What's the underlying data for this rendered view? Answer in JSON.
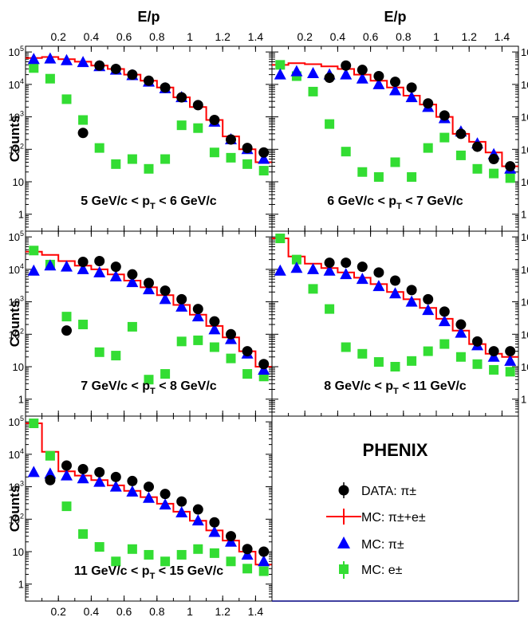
{
  "chart_data": {
    "type": "scatter",
    "x_axis_label": "E/p",
    "y_axis_label": "Counts",
    "xlim": [
      0,
      1.5
    ],
    "ylim": [
      0.3,
      150000
    ],
    "yscale": "log",
    "x_tick_labels": [
      "0.2",
      "0.4",
      "0.6",
      "0.8",
      "1",
      "1.2",
      "1.4"
    ],
    "x_ticks": [
      0.2,
      0.4,
      0.6,
      0.8,
      1.0,
      1.2,
      1.4
    ],
    "y_ticks": [
      1,
      10,
      100,
      1000,
      10000,
      100000
    ],
    "y_tick_labels": [
      {
        "base": "1",
        "exp": ""
      },
      {
        "base": "10",
        "exp": ""
      },
      {
        "base": "10",
        "exp": "2"
      },
      {
        "base": "10",
        "exp": "3"
      },
      {
        "base": "10",
        "exp": "4"
      },
      {
        "base": "10",
        "exp": "5"
      }
    ],
    "colors": {
      "data": "#000000",
      "mc_sum": "#ff0000",
      "mc_pi": "#0000ff",
      "mc_e": "#33dd33"
    },
    "legend": {
      "title": "PHENIX",
      "entries": [
        {
          "key": "data",
          "label": "DATA: π±",
          "marker": "circle"
        },
        {
          "key": "mc_sum",
          "label": "MC: π±+e±",
          "marker": "line"
        },
        {
          "key": "mc_pi",
          "label": "MC: π±",
          "marker": "triangle"
        },
        {
          "key": "mc_e",
          "label": "MC: e±",
          "marker": "square"
        }
      ]
    },
    "panels": [
      {
        "label": "5 GeV/c < pT < 6 GeV/c",
        "label_parts": [
          "5 GeV/c < p",
          "T",
          " < 6 GeV/c"
        ],
        "x": [
          0.05,
          0.15,
          0.25,
          0.35,
          0.45,
          0.55,
          0.65,
          0.75,
          0.85,
          0.95,
          1.05,
          1.15,
          1.25,
          1.35,
          1.45
        ],
        "mc_sum": [
          65000,
          70000,
          60000,
          50000,
          38000,
          30000,
          20000,
          13000,
          8000,
          4000,
          2000,
          800,
          250,
          100,
          40
        ],
        "mc_pi": [
          60000,
          62000,
          55000,
          48000,
          36000,
          28000,
          19000,
          12000,
          7500,
          4000,
          null,
          700,
          200,
          100,
          50
        ],
        "data": [
          null,
          null,
          null,
          320,
          38000,
          30000,
          20000,
          13000,
          8000,
          4000,
          2300,
          800,
          200,
          110,
          80
        ],
        "mc_e": [
          32000,
          15000,
          3500,
          800,
          110,
          35,
          50,
          25,
          50,
          550,
          450,
          80,
          55,
          35,
          22
        ]
      },
      {
        "label": "6 GeV/c < pT < 7 GeV/c",
        "label_parts": [
          "6 GeV/c < p",
          "T",
          " < 7 GeV/c"
        ],
        "x": [
          0.05,
          0.15,
          0.25,
          0.35,
          0.45,
          0.55,
          0.65,
          0.75,
          0.85,
          0.95,
          1.05,
          1.15,
          1.25,
          1.35,
          1.45
        ],
        "mc_sum": [
          40000,
          45000,
          42000,
          36000,
          30000,
          20000,
          13000,
          8000,
          4500,
          2400,
          1000,
          300,
          170,
          80,
          30
        ],
        "mc_pi": [
          20000,
          25000,
          22000,
          20000,
          20000,
          15000,
          10000,
          6500,
          4000,
          2000,
          900,
          350,
          150,
          70,
          25
        ],
        "data": [
          null,
          null,
          null,
          16000,
          38000,
          28000,
          18000,
          12000,
          8000,
          2600,
          1100,
          300,
          120,
          50,
          30
        ],
        "mc_e": [
          40000,
          18000,
          6000,
          600,
          85,
          20,
          14,
          40,
          14,
          110,
          230,
          65,
          25,
          18,
          13
        ]
      },
      {
        "label": "7 GeV/c < pT < 8 GeV/c",
        "label_parts": [
          "7 GeV/c < p",
          "T",
          " < 8 GeV/c"
        ],
        "x": [
          0.05,
          0.15,
          0.25,
          0.35,
          0.45,
          0.55,
          0.65,
          0.75,
          0.85,
          0.95,
          1.05,
          1.15,
          1.25,
          1.35,
          1.45
        ],
        "mc_sum": [
          35000,
          28000,
          18000,
          13000,
          10000,
          7000,
          4500,
          2800,
          1600,
          800,
          400,
          180,
          80,
          30,
          10
        ],
        "mc_pi": [
          9000,
          13000,
          12000,
          10000,
          8000,
          6000,
          4000,
          2400,
          1200,
          700,
          350,
          140,
          70,
          25,
          8
        ],
        "data": [
          null,
          null,
          130,
          17000,
          18000,
          12000,
          7000,
          3800,
          2200,
          1200,
          600,
          250,
          100,
          30,
          12
        ],
        "mc_e": [
          38000,
          14000,
          350,
          200,
          28,
          22,
          170,
          4,
          6,
          60,
          65,
          40,
          18,
          6,
          5
        ]
      },
      {
        "label": "8 GeV/c < pT < 11 GeV/c",
        "label_parts": [
          "8 GeV/c < p",
          "T",
          " < 11 GeV/c"
        ],
        "x": [
          0.05,
          0.15,
          0.25,
          0.35,
          0.45,
          0.55,
          0.65,
          0.75,
          0.85,
          0.95,
          1.05,
          1.15,
          1.25,
          1.35,
          1.45
        ],
        "mc_sum": [
          90000,
          25000,
          15000,
          11000,
          8000,
          5500,
          3500,
          2000,
          1200,
          650,
          300,
          130,
          50,
          25,
          20
        ],
        "mc_pi": [
          9000,
          11000,
          10000,
          9000,
          7000,
          5000,
          3000,
          1800,
          1000,
          550,
          250,
          110,
          45,
          20,
          15
        ],
        "data": [
          null,
          null,
          null,
          16000,
          16000,
          12000,
          8000,
          4500,
          2300,
          1200,
          500,
          200,
          60,
          30,
          30
        ],
        "mc_e": [
          90000,
          20000,
          2500,
          600,
          40,
          25,
          14,
          10,
          15,
          30,
          50,
          20,
          12,
          8,
          7
        ]
      },
      {
        "label": "11 GeV/c < pT < 15 GeV/c",
        "label_parts": [
          "11 GeV/c < p",
          "T",
          " < 15 GeV/c"
        ],
        "x": [
          0.05,
          0.15,
          0.25,
          0.35,
          0.45,
          0.55,
          0.65,
          0.75,
          0.85,
          0.95,
          1.05,
          1.15,
          1.25,
          1.35,
          1.45
        ],
        "mc_sum": [
          90000,
          12000,
          3000,
          2200,
          1600,
          1100,
          750,
          480,
          300,
          170,
          90,
          45,
          22,
          10,
          4
        ],
        "mc_pi": [
          2800,
          2500,
          2200,
          1800,
          1400,
          1000,
          700,
          450,
          280,
          160,
          90,
          40,
          20,
          8,
          5
        ],
        "data": [
          null,
          1600,
          4500,
          3500,
          2800,
          2000,
          1500,
          1000,
          600,
          350,
          200,
          80,
          30,
          12,
          10
        ],
        "mc_e": [
          90000,
          9000,
          250,
          35,
          14,
          5,
          12,
          8,
          5,
          8,
          12,
          9,
          5,
          3,
          2.5
        ]
      }
    ]
  }
}
